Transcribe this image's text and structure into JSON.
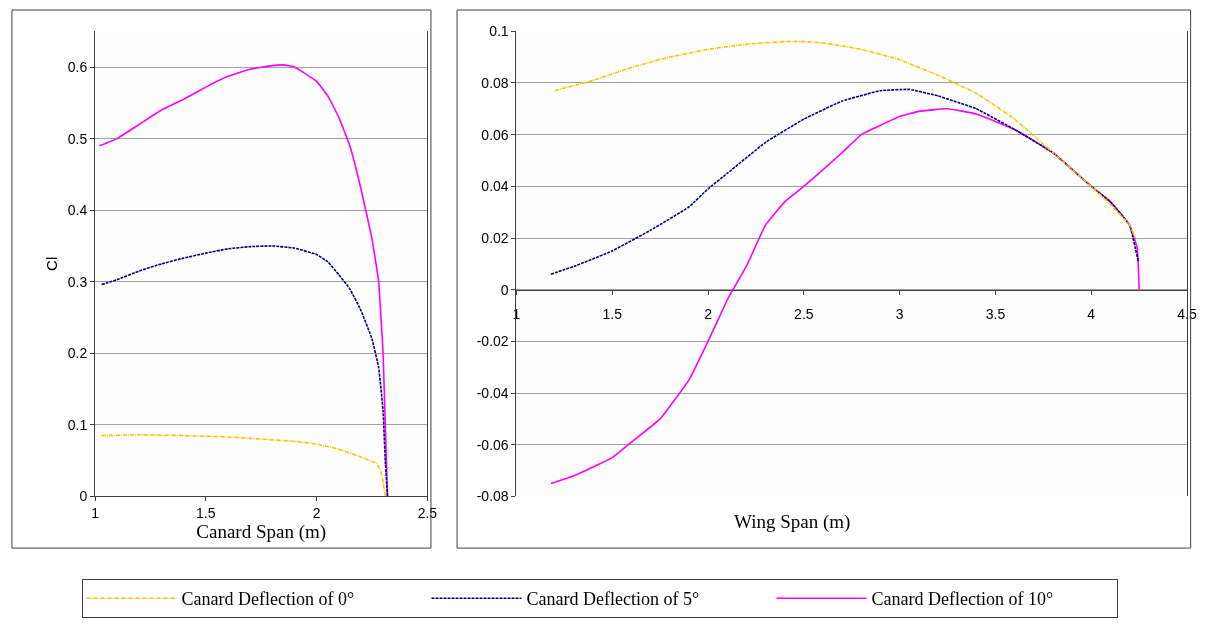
{
  "chart_data": [
    {
      "type": "line",
      "xlabel": "Canard Span (m)",
      "ylabel": "Cl",
      "xlim": [
        1,
        2.5
      ],
      "xticks": [
        1,
        1.5,
        2,
        2.5
      ],
      "ylim": [
        0,
        0.65
      ],
      "yticks": [
        0,
        0.1,
        0.2,
        0.3,
        0.4,
        0.5,
        0.6
      ],
      "grid": "y",
      "legend": "bottom",
      "series": [
        {
          "name": "Canard Deflection of 0°",
          "color": "#f0c800",
          "line_style": "dashdot",
          "x": [
            1.03,
            1.2,
            1.4,
            1.6,
            1.8,
            1.9,
            2.0,
            2.1,
            2.2,
            2.27,
            2.29,
            2.3,
            2.31
          ],
          "values": [
            0.085,
            0.086,
            0.085,
            0.083,
            0.079,
            0.077,
            0.073,
            0.066,
            0.055,
            0.046,
            0.035,
            0.02,
            0
          ]
        },
        {
          "name": "Canard Deflection of 5°",
          "color": "#000080",
          "line_style": "dashed",
          "x": [
            1.03,
            1.1,
            1.2,
            1.3,
            1.4,
            1.5,
            1.6,
            1.7,
            1.8,
            1.9,
            2.0,
            2.05,
            2.1,
            2.15,
            2.2,
            2.25,
            2.28,
            2.3,
            2.31,
            2.32
          ],
          "values": [
            0.296,
            0.303,
            0.315,
            0.325,
            0.333,
            0.34,
            0.346,
            0.349,
            0.35,
            0.347,
            0.338,
            0.328,
            0.31,
            0.29,
            0.26,
            0.22,
            0.18,
            0.12,
            0.05,
            0
          ]
        },
        {
          "name": "Canard Deflection of 10°",
          "color": "#ff00ff",
          "line_style": "solid",
          "x": [
            1.02,
            1.1,
            1.2,
            1.3,
            1.4,
            1.5,
            1.6,
            1.7,
            1.8,
            1.85,
            1.9,
            2.0,
            2.05,
            2.1,
            2.15,
            2.2,
            2.25,
            2.28,
            2.3,
            2.31,
            2.32
          ],
          "values": [
            0.49,
            0.5,
            0.52,
            0.54,
            0.555,
            0.572,
            0.587,
            0.597,
            0.602,
            0.603,
            0.6,
            0.58,
            0.56,
            0.53,
            0.49,
            0.43,
            0.36,
            0.3,
            0.2,
            0.1,
            0
          ]
        }
      ]
    },
    {
      "type": "line",
      "xlabel": "Wing Span (m)",
      "xlim": [
        1,
        4.5
      ],
      "xticks": [
        1,
        1.5,
        2,
        2.5,
        3,
        3.5,
        4,
        4.5
      ],
      "ylim": [
        -0.08,
        0.1
      ],
      "yticks": [
        -0.08,
        -0.06,
        -0.04,
        -0.02,
        0,
        0.02,
        0.04,
        0.06,
        0.08,
        0.1
      ],
      "grid": "y",
      "legend": "bottom",
      "series": [
        {
          "color": "#f0c800",
          "line_style": "dashdot",
          "x": [
            1.2,
            1.4,
            1.6,
            1.8,
            2.0,
            2.2,
            2.4,
            2.5,
            2.6,
            2.8,
            3.0,
            3.2,
            3.4,
            3.6,
            3.8,
            4.0,
            4.1,
            4.2,
            4.23
          ],
          "values": [
            0.077,
            0.081,
            0.086,
            0.09,
            0.093,
            0.095,
            0.096,
            0.096,
            0.0955,
            0.093,
            0.089,
            0.083,
            0.076,
            0.066,
            0.053,
            0.04,
            0.033,
            0.025,
            0.02
          ]
        },
        {
          "color": "#000080",
          "line_style": "dashed",
          "x": [
            1.18,
            1.3,
            1.5,
            1.7,
            1.9,
            2.0,
            2.1,
            2.3,
            2.5,
            2.7,
            2.9,
            3.05,
            3.2,
            3.4,
            3.6,
            3.8,
            4.0,
            4.1,
            4.2,
            4.245
          ],
          "values": [
            0.006,
            0.009,
            0.015,
            0.023,
            0.032,
            0.039,
            0.045,
            0.057,
            0.066,
            0.073,
            0.077,
            0.0775,
            0.075,
            0.07,
            0.062,
            0.053,
            0.04,
            0.034,
            0.025,
            0.011
          ]
        },
        {
          "color": "#ff00ff",
          "line_style": "solid",
          "x": [
            1.18,
            1.3,
            1.5,
            1.6,
            1.75,
            1.9,
            2.0,
            2.1,
            2.13,
            2.2,
            2.3,
            2.4,
            2.5,
            2.7,
            2.8,
            3.0,
            3.1,
            3.25,
            3.4,
            3.6,
            3.8,
            4.0,
            4.1,
            4.2,
            4.24,
            4.25
          ],
          "values": [
            -0.075,
            -0.072,
            -0.065,
            -0.059,
            -0.05,
            -0.035,
            -0.02,
            -0.004,
            0,
            0.009,
            0.025,
            0.034,
            0.04,
            0.053,
            0.06,
            0.067,
            0.069,
            0.07,
            0.068,
            0.062,
            0.053,
            0.04,
            0.034,
            0.025,
            0.016,
            0
          ]
        }
      ]
    }
  ]
}
